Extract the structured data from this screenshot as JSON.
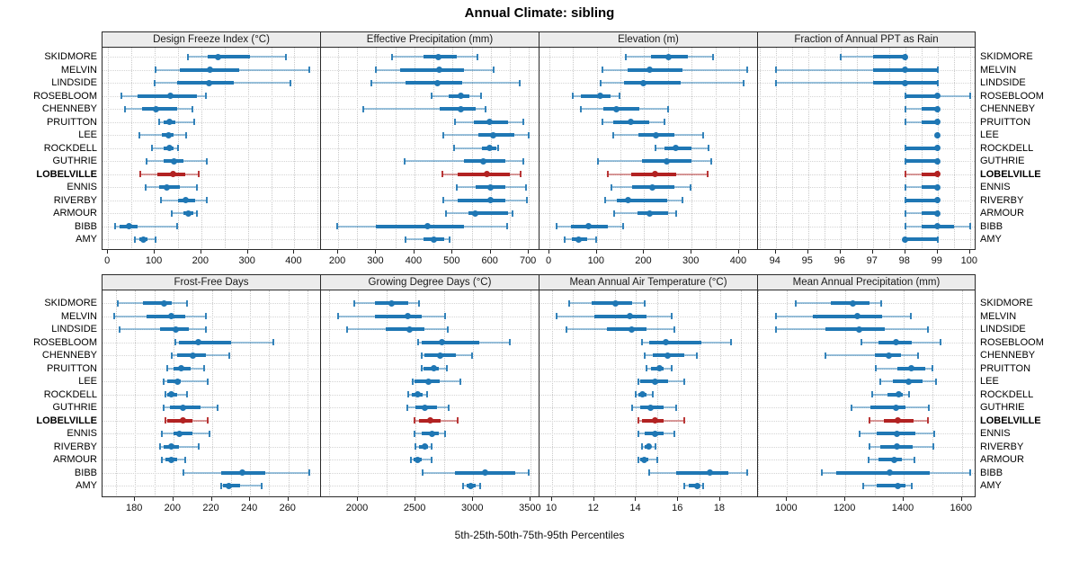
{
  "title": "Annual Climate: sibling",
  "caption": "5th-25th-50th-75th-95th Percentiles",
  "colors": {
    "series": "#1f77b4",
    "highlight": "#b22222",
    "strip_bg": "#ececec",
    "grid": "#c9c9c9"
  },
  "chart_data": {
    "type": "dotplot-percentiles",
    "percentiles": [
      5,
      25,
      50,
      75,
      95
    ],
    "legend_note": "5th-25th-50th-75th-95th Percentiles",
    "highlight_site": "LOBELVILLE",
    "sites": [
      "SKIDMORE",
      "MELVIN",
      "LINDSIDE",
      "ROSEBLOOM",
      "CHENNEBY",
      "PRUITTON",
      "LEE",
      "ROCKDELL",
      "GUTHRIE",
      "LOBELVILLE",
      "ENNIS",
      "RIVERBY",
      "ARMOUR",
      "BIBB",
      "AMY"
    ],
    "panels": [
      {
        "title": "Design Freeze Index (°C)",
        "row": 0,
        "col": 0,
        "ticks": [
          0,
          100,
          200,
          300,
          400
        ],
        "minor_step": 50,
        "domain": [
          -12,
          457
        ],
        "values": [
          [
            172,
            213,
            236,
            304,
            382
          ],
          [
            101,
            154,
            219,
            281,
            432
          ],
          [
            99,
            149,
            216,
            270,
            391
          ],
          [
            29,
            63,
            133,
            190,
            209
          ],
          [
            36,
            72,
            102,
            148,
            181
          ],
          [
            109,
            119,
            131,
            145,
            185
          ],
          [
            67,
            115,
            130,
            141,
            168
          ],
          [
            95,
            119,
            131,
            141,
            151
          ],
          [
            83,
            119,
            141,
            161,
            211
          ],
          [
            70,
            106,
            139,
            166,
            195
          ],
          [
            80,
            109,
            126,
            154,
            190
          ],
          [
            113,
            151,
            167,
            187,
            211
          ],
          [
            136,
            161,
            172,
            183,
            190
          ],
          [
            15,
            25,
            44,
            63,
            148
          ],
          [
            57,
            67,
            76,
            85,
            102
          ]
        ]
      },
      {
        "title": "Effective Precipitation (mm)",
        "row": 0,
        "col": 1,
        "ticks": [
          200,
          300,
          400,
          500,
          600,
          700
        ],
        "minor_step": 50,
        "domain": [
          155,
          728
        ],
        "values": [
          [
            342,
            424,
            463,
            510,
            566
          ],
          [
            300,
            362,
            465,
            531,
            607
          ],
          [
            288,
            377,
            461,
            525,
            675
          ],
          [
            445,
            489,
            521,
            545,
            574
          ],
          [
            267,
            467,
            521,
            560,
            587
          ],
          [
            506,
            556,
            597,
            646,
            685
          ],
          [
            475,
            568,
            607,
            661,
            700
          ],
          [
            505,
            576,
            597,
            615,
            620
          ],
          [
            375,
            529,
            580,
            638,
            685
          ],
          [
            473,
            513,
            589,
            650,
            678
          ],
          [
            510,
            560,
            600,
            638,
            692
          ],
          [
            475,
            513,
            599,
            638,
            694
          ],
          [
            482,
            541,
            560,
            646,
            657
          ],
          [
            198,
            300,
            434,
            529,
            644
          ],
          [
            376,
            424,
            451,
            478,
            492
          ]
        ]
      },
      {
        "title": "Elevation (m)",
        "row": 0,
        "col": 2,
        "ticks": [
          0,
          100,
          200,
          300,
          400
        ],
        "minor_step": 50,
        "domain": [
          -21,
          440
        ],
        "values": [
          [
            161,
            214,
            251,
            292,
            345
          ],
          [
            111,
            164,
            212,
            280,
            418
          ],
          [
            108,
            158,
            198,
            276,
            410
          ],
          [
            50,
            67,
            108,
            129,
            147
          ],
          [
            67,
            114,
            141,
            189,
            251
          ],
          [
            112,
            134,
            171,
            211,
            242
          ],
          [
            134,
            188,
            225,
            264,
            324
          ],
          [
            223,
            242,
            266,
            300,
            336
          ],
          [
            103,
            195,
            248,
            300,
            341
          ],
          [
            124,
            173,
            223,
            267,
            333
          ],
          [
            131,
            174,
            218,
            264,
            298
          ],
          [
            118,
            143,
            166,
            248,
            281
          ],
          [
            136,
            186,
            212,
            251,
            267
          ],
          [
            15,
            45,
            82,
            124,
            156
          ],
          [
            32,
            47,
            62,
            79,
            98
          ]
        ]
      },
      {
        "title": "Fraction of Annual PPT as Rain",
        "row": 0,
        "col": 3,
        "ticks": [
          94,
          95,
          96,
          97,
          98,
          99,
          100
        ],
        "minor_step": 0.5,
        "domain": [
          93.45,
          100.2
        ],
        "values": [
          [
            96,
            97,
            98,
            98,
            98
          ],
          [
            94,
            97,
            98,
            99,
            99
          ],
          [
            94,
            97,
            98,
            99,
            99
          ],
          [
            98,
            98,
            99,
            99,
            100
          ],
          [
            98,
            98.5,
            99,
            99,
            99
          ],
          [
            98,
            98.5,
            99,
            99,
            99
          ],
          [
            99,
            99,
            99,
            99,
            99
          ],
          [
            98,
            98,
            99,
            99,
            99
          ],
          [
            98,
            98,
            99,
            99,
            99
          ],
          [
            98,
            98.5,
            99,
            99,
            99
          ],
          [
            98,
            98.5,
            99,
            99,
            99
          ],
          [
            98,
            98,
            99,
            99,
            99
          ],
          [
            98,
            98.5,
            99,
            99,
            99
          ],
          [
            98,
            98.5,
            99,
            99.5,
            100
          ],
          [
            98,
            98,
            98,
            99,
            99
          ]
        ]
      },
      {
        "title": "Frost-Free Days",
        "row": 1,
        "col": 0,
        "ticks": [
          180,
          200,
          220,
          240,
          260
        ],
        "minor_step": 10,
        "domain": [
          163,
          277
        ],
        "values": [
          [
            171,
            184,
            195,
            199,
            207
          ],
          [
            169,
            186,
            199,
            206,
            217
          ],
          [
            172,
            193,
            201,
            208,
            217
          ],
          [
            201,
            203,
            213,
            230,
            252
          ],
          [
            199,
            202,
            210,
            217,
            229
          ],
          [
            197,
            200,
            204,
            209,
            216
          ],
          [
            195,
            197,
            202,
            204,
            218
          ],
          [
            196,
            197,
            199,
            202,
            207
          ],
          [
            195,
            198,
            205,
            214,
            223
          ],
          [
            196,
            197,
            205,
            210,
            218
          ],
          [
            194,
            200,
            203,
            210,
            219
          ],
          [
            193,
            195,
            199,
            203,
            213
          ],
          [
            194,
            196,
            199,
            202,
            206
          ],
          [
            205,
            225,
            236,
            248,
            271
          ],
          [
            225,
            226,
            229,
            235,
            246
          ]
        ]
      },
      {
        "title": "Growing Degree Days (°C)",
        "row": 1,
        "col": 1,
        "ticks": [
          2000,
          2500,
          3000,
          3500
        ],
        "minor_step": 250,
        "domain": [
          1680,
          3575
        ],
        "values": [
          [
            1970,
            2150,
            2290,
            2440,
            2530
          ],
          [
            1830,
            2150,
            2430,
            2550,
            2760
          ],
          [
            1910,
            2245,
            2445,
            2575,
            2780
          ],
          [
            2525,
            2555,
            2730,
            3050,
            3320
          ],
          [
            2550,
            2580,
            2710,
            2850,
            2990
          ],
          [
            2556,
            2570,
            2660,
            2700,
            2775
          ],
          [
            2475,
            2490,
            2615,
            2710,
            2885
          ],
          [
            2440,
            2465,
            2515,
            2560,
            2600
          ],
          [
            2430,
            2500,
            2580,
            2685,
            2790
          ],
          [
            2490,
            2530,
            2630,
            2720,
            2865
          ],
          [
            2490,
            2555,
            2640,
            2700,
            2760
          ],
          [
            2500,
            2530,
            2577,
            2608,
            2640
          ],
          [
            2460,
            2480,
            2520,
            2556,
            2640
          ],
          [
            2560,
            2840,
            3100,
            3365,
            3480
          ],
          [
            2910,
            2940,
            2980,
            3020,
            3060
          ]
        ]
      },
      {
        "title": "Mean Annual Air Temperature (°C)",
        "row": 1,
        "col": 2,
        "ticks": [
          10,
          12,
          14,
          16,
          18
        ],
        "minor_step": 1,
        "domain": [
          9.4,
          19.8
        ],
        "values": [
          [
            10.8,
            11.9,
            13.0,
            13.8,
            14.4
          ],
          [
            10.2,
            12.0,
            13.7,
            14.5,
            15.7
          ],
          [
            10.7,
            12.6,
            13.8,
            14.5,
            15.8
          ],
          [
            14.3,
            14.6,
            15.4,
            17.1,
            18.5
          ],
          [
            14.4,
            14.8,
            15.5,
            16.3,
            16.9
          ],
          [
            14.5,
            14.7,
            15.1,
            15.3,
            15.7
          ],
          [
            14.1,
            14.2,
            14.9,
            15.5,
            16.3
          ],
          [
            14.0,
            14.1,
            14.3,
            14.5,
            14.8
          ],
          [
            13.8,
            14.2,
            14.7,
            15.3,
            15.9
          ],
          [
            14.1,
            14.3,
            14.9,
            15.3,
            16.3
          ],
          [
            14.1,
            14.4,
            14.9,
            15.3,
            15.8
          ],
          [
            14.3,
            14.4,
            14.6,
            14.7,
            14.9
          ],
          [
            14.1,
            14.2,
            14.4,
            14.6,
            15.0
          ],
          [
            14.6,
            15.9,
            17.5,
            18.4,
            19.3
          ],
          [
            16.3,
            16.5,
            16.9,
            17.0,
            17.2
          ]
        ]
      },
      {
        "title": "Mean Annual Precipitation (mm)",
        "row": 1,
        "col": 3,
        "ticks": [
          1000,
          1200,
          1400,
          1600
        ],
        "minor_step": 100,
        "domain": [
          900,
          1650
        ],
        "values": [
          [
            1031,
            1149,
            1226,
            1283,
            1324
          ],
          [
            963,
            1087,
            1242,
            1326,
            1424
          ],
          [
            963,
            1133,
            1246,
            1334,
            1483
          ],
          [
            1254,
            1314,
            1375,
            1427,
            1527
          ],
          [
            1133,
            1300,
            1349,
            1390,
            1450
          ],
          [
            1303,
            1377,
            1426,
            1475,
            1498
          ],
          [
            1321,
            1362,
            1416,
            1465,
            1511
          ],
          [
            1293,
            1345,
            1382,
            1398,
            1419
          ],
          [
            1220,
            1285,
            1375,
            1405,
            1485
          ],
          [
            1283,
            1331,
            1380,
            1434,
            1482
          ],
          [
            1249,
            1306,
            1376,
            1439,
            1506
          ],
          [
            1283,
            1321,
            1376,
            1431,
            1503
          ],
          [
            1280,
            1314,
            1369,
            1393,
            1437
          ],
          [
            1120,
            1170,
            1352,
            1491,
            1627
          ],
          [
            1262,
            1306,
            1380,
            1406,
            1427
          ]
        ]
      }
    ]
  }
}
